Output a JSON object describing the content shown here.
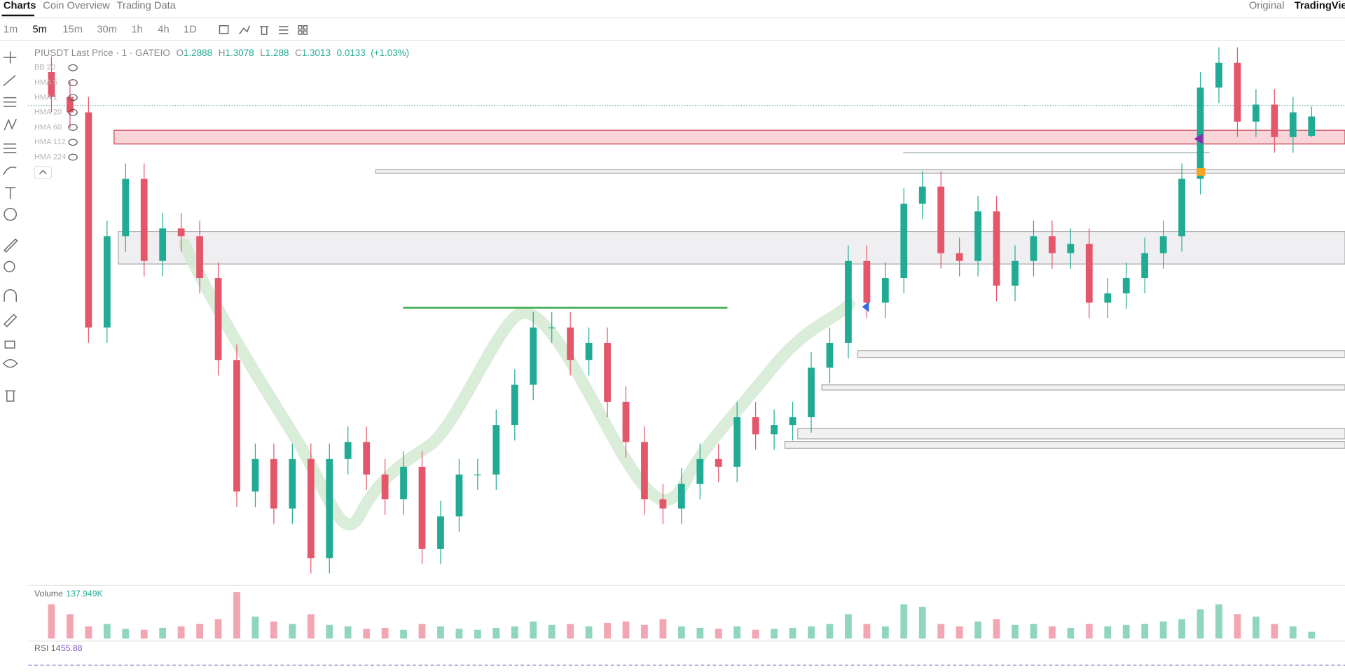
{
  "ui": {
    "tabs": [
      "Charts",
      "Coin Overview",
      "Trading Data"
    ],
    "right_tabs": [
      "Original",
      "TradingView"
    ],
    "intervals": [
      "1m",
      "5m",
      "15m",
      "30m",
      "1h",
      "4h",
      "1D"
    ],
    "symbol": "PIUSDT Last Price · 1 · GATEIO",
    "ohlc_labels": [
      "O",
      "H",
      "L",
      "C"
    ],
    "change": "0.0133",
    "change_pct": "(+1.03%)",
    "indicators": [
      "BB 20",
      "HMA 5",
      "HMA 1",
      "HMA 20",
      "HMA 60",
      "HMA 112",
      "HMA 224"
    ],
    "volume_title": "Volume",
    "rsi_title": "RSI 14",
    "rsi_value": "55.88"
  },
  "chart_data": {
    "type": "candlestick",
    "up_color": "#22ab94",
    "down_color": "#e4576b",
    "ylim": [
      1.0,
      1.35
    ],
    "open": [
      1.33,
      1.314,
      1.304,
      1.165,
      1.224,
      1.261,
      1.208,
      1.229,
      1.224,
      1.197,
      1.144,
      1.059,
      1.08,
      1.048,
      1.08,
      1.016,
      1.08,
      1.091,
      1.07,
      1.054,
      1.075,
      1.022,
      1.043,
      1.07,
      1.07,
      1.102,
      1.128,
      1.165,
      1.165,
      1.144,
      1.155,
      1.117,
      1.091,
      1.054,
      1.048,
      1.064,
      1.08,
      1.075,
      1.107,
      1.096,
      1.102,
      1.107,
      1.139,
      1.155,
      1.208,
      1.181,
      1.197,
      1.245,
      1.256,
      1.213,
      1.208,
      1.24,
      1.192,
      1.208,
      1.224,
      1.213,
      1.219,
      1.181,
      1.187,
      1.197,
      1.213,
      1.224,
      1.261,
      1.32,
      1.336,
      1.298,
      1.309,
      1.288,
      1.2888
    ],
    "high": [
      1.34,
      1.324,
      1.314,
      1.234,
      1.271,
      1.271,
      1.239,
      1.239,
      1.234,
      1.207,
      1.154,
      1.09,
      1.09,
      1.09,
      1.09,
      1.09,
      1.101,
      1.101,
      1.08,
      1.085,
      1.085,
      1.053,
      1.08,
      1.08,
      1.112,
      1.138,
      1.175,
      1.175,
      1.175,
      1.165,
      1.165,
      1.127,
      1.101,
      1.064,
      1.074,
      1.09,
      1.09,
      1.117,
      1.117,
      1.112,
      1.117,
      1.149,
      1.165,
      1.218,
      1.218,
      1.207,
      1.255,
      1.266,
      1.266,
      1.223,
      1.25,
      1.25,
      1.218,
      1.234,
      1.234,
      1.229,
      1.229,
      1.197,
      1.207,
      1.223,
      1.234,
      1.271,
      1.33,
      1.346,
      1.346,
      1.319,
      1.319,
      1.314,
      1.3078
    ],
    "low": [
      1.304,
      1.294,
      1.155,
      1.155,
      1.214,
      1.198,
      1.198,
      1.214,
      1.187,
      1.134,
      1.049,
      1.049,
      1.038,
      1.038,
      1.006,
      1.006,
      1.07,
      1.06,
      1.044,
      1.044,
      1.012,
      1.012,
      1.033,
      1.06,
      1.06,
      1.092,
      1.118,
      1.155,
      1.134,
      1.134,
      1.107,
      1.081,
      1.044,
      1.038,
      1.038,
      1.054,
      1.065,
      1.065,
      1.086,
      1.086,
      1.092,
      1.097,
      1.129,
      1.145,
      1.171,
      1.171,
      1.187,
      1.235,
      1.203,
      1.198,
      1.198,
      1.182,
      1.182,
      1.198,
      1.203,
      1.203,
      1.171,
      1.171,
      1.177,
      1.187,
      1.203,
      1.214,
      1.251,
      1.31,
      1.288,
      1.288,
      1.278,
      1.278,
      1.288
    ],
    "close": [
      1.314,
      1.304,
      1.165,
      1.224,
      1.261,
      1.208,
      1.229,
      1.224,
      1.197,
      1.144,
      1.059,
      1.08,
      1.048,
      1.08,
      1.016,
      1.08,
      1.091,
      1.07,
      1.054,
      1.075,
      1.022,
      1.043,
      1.07,
      1.07,
      1.102,
      1.128,
      1.165,
      1.165,
      1.144,
      1.155,
      1.117,
      1.091,
      1.054,
      1.048,
      1.064,
      1.08,
      1.075,
      1.107,
      1.096,
      1.102,
      1.107,
      1.139,
      1.155,
      1.208,
      1.181,
      1.197,
      1.245,
      1.256,
      1.213,
      1.208,
      1.24,
      1.192,
      1.208,
      1.224,
      1.213,
      1.219,
      1.181,
      1.187,
      1.197,
      1.213,
      1.224,
      1.261,
      1.32,
      1.336,
      1.298,
      1.309,
      1.288,
      1.304,
      1.3013
    ],
    "volume": {
      "ylim": [
        0,
        1000000
      ],
      "up_color": "#8fd6bd",
      "down_color": "#f3a6b1",
      "value_label": "137.949K",
      "values": [
        700000,
        500000,
        250000,
        300000,
        200000,
        180000,
        220000,
        250000,
        300000,
        400000,
        950000,
        450000,
        350000,
        300000,
        500000,
        280000,
        250000,
        200000,
        220000,
        180000,
        300000,
        250000,
        200000,
        180000,
        220000,
        250000,
        350000,
        280000,
        300000,
        250000,
        320000,
        350000,
        280000,
        400000,
        250000,
        220000,
        200000,
        250000,
        180000,
        200000,
        220000,
        250000,
        300000,
        500000,
        300000,
        250000,
        700000,
        650000,
        300000,
        250000,
        350000,
        400000,
        280000,
        300000,
        250000,
        220000,
        300000,
        250000,
        280000,
        300000,
        350000,
        400000,
        600000,
        700000,
        500000,
        450000,
        300000,
        250000,
        137949
      ]
    }
  }
}
